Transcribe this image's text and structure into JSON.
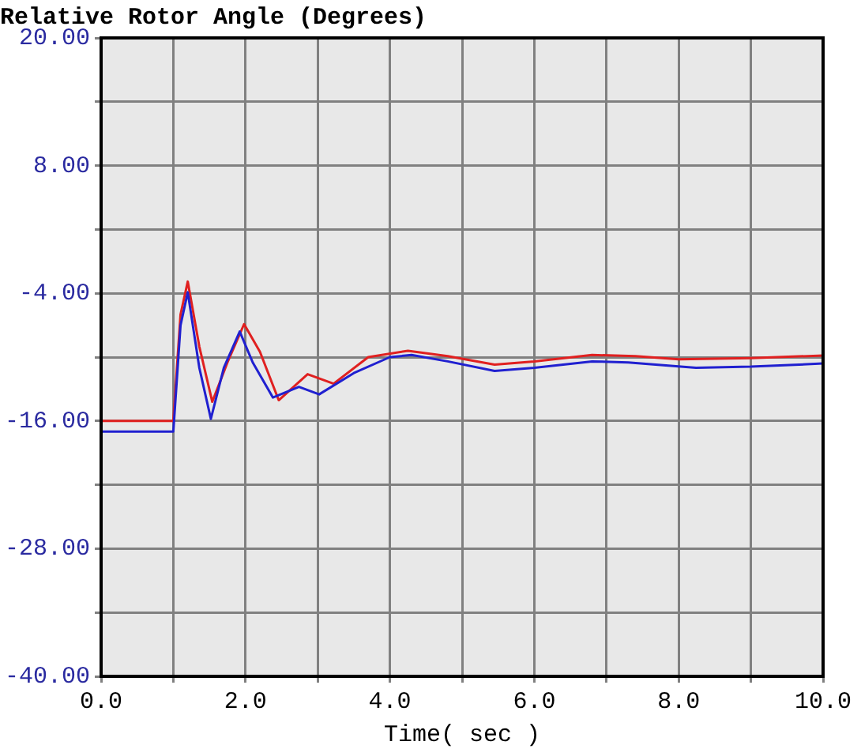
{
  "chart_data": {
    "type": "line",
    "title": "Relative Rotor Angle (Degrees)",
    "xlabel": "Time( sec )",
    "xlim": [
      0,
      10
    ],
    "xticks": [
      {
        "value": 0,
        "label": "0.0"
      },
      {
        "value": 1,
        "label": null
      },
      {
        "value": 2,
        "label": "2.0"
      },
      {
        "value": 3,
        "label": null
      },
      {
        "value": 4,
        "label": "4.0"
      },
      {
        "value": 5,
        "label": null
      },
      {
        "value": 6,
        "label": "6.0"
      },
      {
        "value": 7,
        "label": null
      },
      {
        "value": 8,
        "label": "8.0"
      },
      {
        "value": 9,
        "label": null
      },
      {
        "value": 10,
        "label": "10.0"
      }
    ],
    "ylim": [
      -40,
      20
    ],
    "yticks": [
      {
        "value": -40,
        "label": "-40.00"
      },
      {
        "value": -34,
        "label": null
      },
      {
        "value": -28,
        "label": "-28.00"
      },
      {
        "value": -22,
        "label": null
      },
      {
        "value": -16,
        "label": "-16.00"
      },
      {
        "value": -10,
        "label": null
      },
      {
        "value": -4,
        "label": "-4.00"
      },
      {
        "value": 2,
        "label": null
      },
      {
        "value": 8,
        "label": "8.00"
      },
      {
        "value": 14,
        "label": null
      },
      {
        "value": 20,
        "label": "20.00"
      }
    ],
    "grid": true,
    "marker": "none",
    "line_style": "solid",
    "series": [
      {
        "color": "#2020d0",
        "x": [
          0,
          1.0,
          1.1,
          1.2,
          1.36,
          1.52,
          1.7,
          1.92,
          2.1,
          2.38,
          2.74,
          3.02,
          3.5,
          4.0,
          4.3,
          4.8,
          5.45,
          6.0,
          6.8,
          7.3,
          8.24,
          9.0,
          10
        ],
        "values": [
          -17,
          -17,
          -7,
          -3.9,
          -11,
          -15.8,
          -11,
          -7.6,
          -10.5,
          -13.8,
          -12.8,
          -13.5,
          -11.5,
          -10,
          -9.8,
          -10.4,
          -11.3,
          -11,
          -10.4,
          -10.5,
          -11,
          -10.9,
          -10.6
        ]
      },
      {
        "color": "#e02020",
        "x": [
          0,
          1.0,
          1.1,
          1.2,
          1.36,
          1.54,
          1.75,
          1.98,
          2.2,
          2.46,
          2.86,
          3.22,
          3.7,
          4.25,
          4.8,
          5.45,
          6.0,
          6.8,
          7.4,
          8.0,
          9.0,
          10
        ],
        "values": [
          -16,
          -16,
          -6,
          -2.9,
          -9,
          -14.2,
          -10.5,
          -6.9,
          -9.5,
          -14.05,
          -11.6,
          -12.5,
          -10,
          -9.4,
          -9.9,
          -10.7,
          -10.4,
          -9.8,
          -9.9,
          -10.2,
          -10.1,
          -9.85
        ]
      }
    ]
  }
}
